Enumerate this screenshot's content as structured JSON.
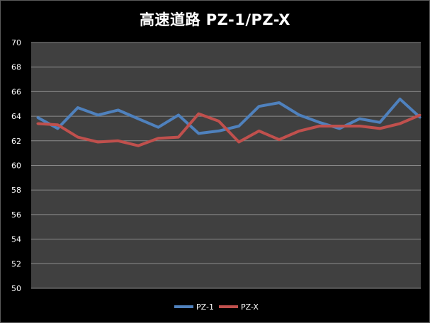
{
  "chart_data": {
    "type": "line",
    "title": "高速道路 PZ-1/PZ-X",
    "xlabel": "",
    "ylabel": "",
    "ylim": [
      50,
      70
    ],
    "yticks": [
      "50",
      "52",
      "54",
      "56",
      "58",
      "60",
      "62",
      "64",
      "66",
      "68",
      "70"
    ],
    "grid": true,
    "legend_position": "bottom",
    "x": [
      1,
      2,
      3,
      4,
      5,
      6,
      7,
      8,
      9,
      10,
      11,
      12,
      13,
      14,
      15,
      16,
      17,
      18,
      19,
      20
    ],
    "series": [
      {
        "name": "PZ-1",
        "color": "#4f81bd",
        "values": [
          63.9,
          63.0,
          64.7,
          64.1,
          64.5,
          63.8,
          63.1,
          64.1,
          62.6,
          62.8,
          63.2,
          64.8,
          65.1,
          64.1,
          63.5,
          63.0,
          63.8,
          63.5,
          65.4,
          63.9
        ]
      },
      {
        "name": "PZ-X",
        "color": "#c0504d",
        "values": [
          63.4,
          63.3,
          62.3,
          61.9,
          62.0,
          61.6,
          62.2,
          62.3,
          64.2,
          63.6,
          61.9,
          62.8,
          62.1,
          62.8,
          63.2,
          63.2,
          63.2,
          63.0,
          63.4,
          64.1
        ]
      }
    ]
  }
}
